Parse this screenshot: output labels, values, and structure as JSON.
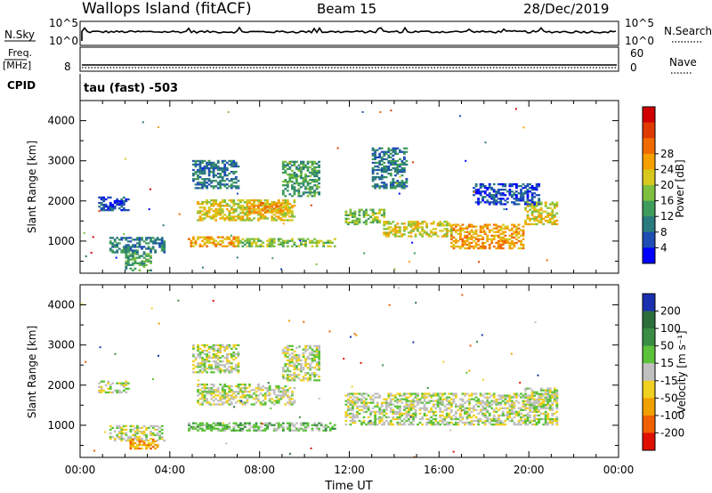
{
  "header": {
    "site": "Wallops Island (fitACF)",
    "beam": "Beam 15",
    "date": "28/Dec/2019"
  },
  "status_panels": {
    "nsky_label": "N.Sky",
    "nsky_ticks": [
      "10^5",
      "10^0"
    ],
    "nsearch_label": "N.Search",
    "nsearch_ticks": [
      "10^5",
      "10^0"
    ],
    "freq_label": "Freq.",
    "freq_unit": "[MHz]",
    "freq_tick": "8",
    "nave_label": "Nave",
    "nave_ticks": [
      "60",
      "0"
    ],
    "cpid_label": "CPID",
    "cpid_value": "tau (fast) -503"
  },
  "chart_data": [
    {
      "type": "heatmap",
      "title": "",
      "xlabel": "Time UT",
      "ylabel": "Slant Range [km]",
      "x_range_hours": [
        0,
        24
      ],
      "ylim": [
        200,
        4500
      ],
      "x_ticks": [
        "00:00",
        "04:00",
        "08:00",
        "12:00",
        "16:00",
        "20:00",
        "00:00"
      ],
      "y_ticks": [
        1000,
        2000,
        3000,
        4000
      ],
      "colorbar": {
        "label": "Power [dB]",
        "ticks": [
          "4",
          "8",
          "12",
          "16",
          "20",
          "24",
          "28"
        ],
        "colors": [
          "#0000ff",
          "#1e4db5",
          "#2a7a7e",
          "#3f9c5a",
          "#7fbf3f",
          "#d8c81e",
          "#f5a000",
          "#f06a00",
          "#e03a00",
          "#d00000"
        ]
      },
      "regions": [
        {
          "t0": 0.8,
          "t1": 2.2,
          "r0": 1750,
          "r1": 2100,
          "level": 1
        },
        {
          "t0": 1.3,
          "t1": 3.8,
          "r0": 700,
          "r1": 1100,
          "level": 2
        },
        {
          "t0": 2.0,
          "t1": 3.2,
          "r0": 250,
          "r1": 700,
          "level": 3
        },
        {
          "t0": 4.8,
          "t1": 7.0,
          "r0": 850,
          "r1": 1100,
          "level": 6
        },
        {
          "t0": 7.0,
          "t1": 11.3,
          "r0": 850,
          "r1": 1050,
          "level": 4
        },
        {
          "t0": 5.2,
          "t1": 9.5,
          "r0": 1500,
          "r1": 2000,
          "level": 5
        },
        {
          "t0": 7.5,
          "t1": 9.0,
          "r0": 1700,
          "r1": 1950,
          "level": 6
        },
        {
          "t0": 5.0,
          "t1": 7.0,
          "r0": 2300,
          "r1": 3000,
          "level": 2
        },
        {
          "t0": 9.0,
          "t1": 10.6,
          "r0": 2100,
          "r1": 3000,
          "level": 3
        },
        {
          "t0": 11.8,
          "t1": 13.5,
          "r0": 1400,
          "r1": 1800,
          "level": 4
        },
        {
          "t0": 13.5,
          "t1": 16.5,
          "r0": 1100,
          "r1": 1500,
          "level": 5
        },
        {
          "t0": 16.5,
          "t1": 19.8,
          "r0": 800,
          "r1": 1400,
          "level": 6
        },
        {
          "t0": 19.8,
          "t1": 21.3,
          "r0": 1400,
          "r1": 1950,
          "level": 5
        },
        {
          "t0": 13.0,
          "t1": 14.5,
          "r0": 2300,
          "r1": 3300,
          "level": 2
        },
        {
          "t0": 17.5,
          "t1": 20.5,
          "r0": 1900,
          "r1": 2400,
          "level": 1
        }
      ]
    },
    {
      "type": "heatmap",
      "title": "",
      "xlabel": "Time UT",
      "ylabel": "Slant Range [km]",
      "x_range_hours": [
        0,
        24
      ],
      "ylim": [
        200,
        4500
      ],
      "x_ticks": [
        "00:00",
        "04:00",
        "08:00",
        "12:00",
        "16:00",
        "20:00",
        "00:00"
      ],
      "y_ticks": [
        1000,
        2000,
        3000,
        4000
      ],
      "colorbar": {
        "label": "Velocity [m s⁻¹]",
        "ticks": [
          "200",
          "100",
          "50",
          "15",
          "-15",
          "-50",
          "-100",
          "-200"
        ],
        "colors": [
          "#1a2fb0",
          "#2c6e3a",
          "#3a8e44",
          "#5cc23a",
          "#c0c0c0",
          "#f0d020",
          "#f0a000",
          "#f06000",
          "#e01000"
        ]
      },
      "regions": [
        {
          "t0": 0.8,
          "t1": 2.2,
          "r0": 1800,
          "r1": 2100,
          "level": 4
        },
        {
          "t0": 1.3,
          "t1": 3.8,
          "r0": 600,
          "r1": 1000,
          "level": 4
        },
        {
          "t0": 2.2,
          "t1": 3.5,
          "r0": 400,
          "r1": 650,
          "level": 6
        },
        {
          "t0": 4.8,
          "t1": 11.3,
          "r0": 850,
          "r1": 1050,
          "level": 3
        },
        {
          "t0": 5.2,
          "t1": 9.5,
          "r0": 1500,
          "r1": 2000,
          "level": 4
        },
        {
          "t0": 5.0,
          "t1": 7.0,
          "r0": 2300,
          "r1": 3000,
          "level": 4
        },
        {
          "t0": 9.0,
          "t1": 10.6,
          "r0": 2100,
          "r1": 3000,
          "level": 4
        },
        {
          "t0": 11.8,
          "t1": 21.3,
          "r0": 1000,
          "r1": 1800,
          "level": 4
        },
        {
          "t0": 19.8,
          "t1": 21.3,
          "r0": 1400,
          "r1": 1900,
          "level": 4
        }
      ]
    }
  ]
}
